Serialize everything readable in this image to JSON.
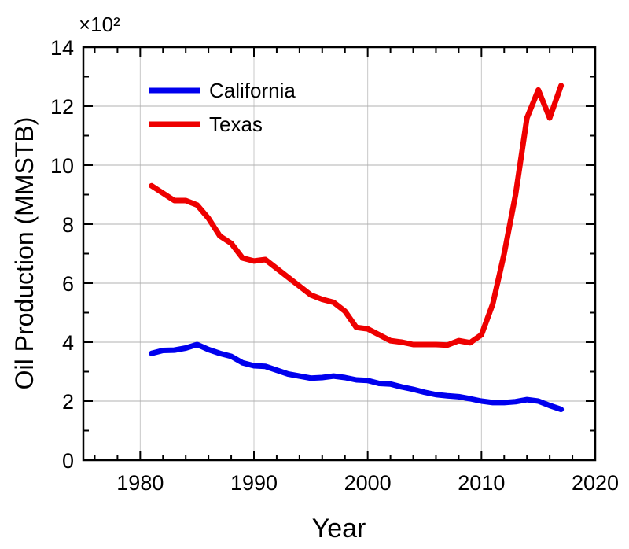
{
  "chart_data": {
    "type": "line",
    "title": "",
    "xlabel": "Year",
    "ylabel": "Oil Production (MMSTB)",
    "y_multiplier_label": "×10²",
    "xlim": [
      1975,
      2020
    ],
    "ylim": [
      0,
      14
    ],
    "x_ticks": [
      1980,
      1990,
      2000,
      2010,
      2020
    ],
    "y_ticks": [
      0,
      2,
      4,
      6,
      8,
      10,
      12,
      14
    ],
    "grid": true,
    "legend_position": "top-left",
    "x": [
      1981,
      1982,
      1983,
      1984,
      1985,
      1986,
      1987,
      1988,
      1989,
      1990,
      1991,
      1992,
      1993,
      1994,
      1995,
      1996,
      1997,
      1998,
      1999,
      2000,
      2001,
      2002,
      2003,
      2004,
      2005,
      2006,
      2007,
      2008,
      2009,
      2010,
      2011,
      2012,
      2013,
      2014,
      2015,
      2016,
      2017
    ],
    "series": [
      {
        "name": "California",
        "color": "#0000ee",
        "values": [
          3.62,
          3.72,
          3.73,
          3.8,
          3.92,
          3.75,
          3.62,
          3.52,
          3.3,
          3.2,
          3.18,
          3.05,
          2.92,
          2.85,
          2.78,
          2.8,
          2.85,
          2.8,
          2.72,
          2.7,
          2.6,
          2.58,
          2.48,
          2.4,
          2.3,
          2.22,
          2.18,
          2.15,
          2.08,
          2.0,
          1.95,
          1.95,
          1.98,
          2.05,
          2.0,
          1.85,
          1.72
        ]
      },
      {
        "name": "Texas",
        "color": "#ee0000",
        "values": [
          9.3,
          9.05,
          8.8,
          8.8,
          8.65,
          8.2,
          7.6,
          7.35,
          6.85,
          6.75,
          6.8,
          6.5,
          6.2,
          5.9,
          5.6,
          5.45,
          5.35,
          5.05,
          4.5,
          4.45,
          4.25,
          4.05,
          4.0,
          3.92,
          3.92,
          3.92,
          3.9,
          4.05,
          3.98,
          4.25,
          5.3,
          7.0,
          9.0,
          11.6,
          12.55,
          11.6,
          12.7
        ]
      }
    ]
  }
}
